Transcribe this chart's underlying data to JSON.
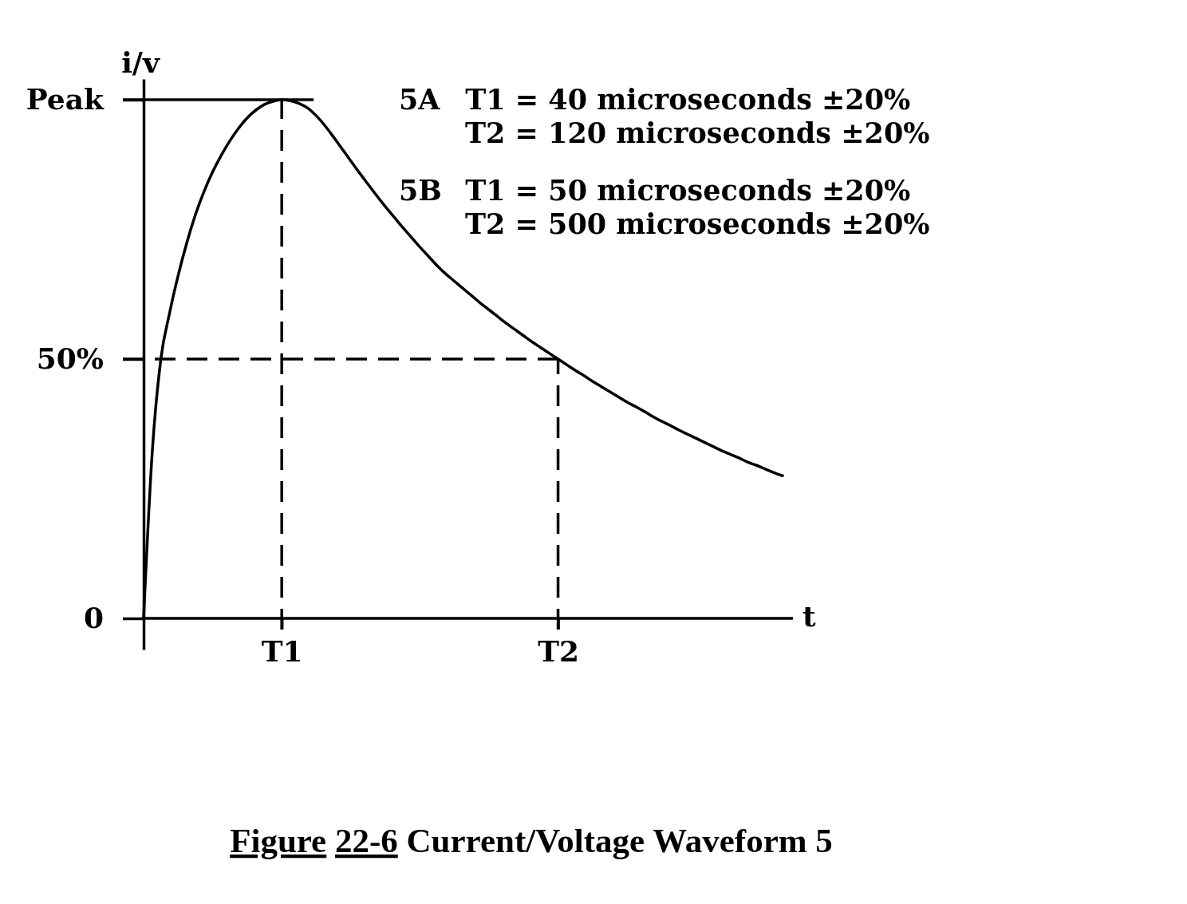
{
  "chart_data": {
    "type": "line",
    "title": "Figure 22-6 Current/Voltage Waveform 5",
    "xlabel": "t",
    "ylabel": "i/v",
    "categories": [
      null,
      null,
      null,
      null,
      null,
      null,
      null,
      null,
      null,
      null,
      null,
      null,
      null,
      null,
      null,
      null,
      "T1",
      null,
      null,
      null,
      null,
      null,
      null,
      null,
      null,
      null,
      null,
      null,
      null,
      null,
      null,
      null,
      null,
      null,
      null,
      null,
      null,
      null,
      null,
      null,
      null,
      null,
      null,
      null,
      null,
      null,
      null,
      null,
      "T2",
      null,
      null,
      null,
      null,
      null,
      null,
      null,
      null,
      null,
      null,
      null,
      null,
      null,
      null,
      null,
      null,
      null,
      null,
      null,
      null,
      null,
      null,
      null,
      null,
      null,
      null
    ],
    "series": [
      {
        "color": "#000000",
        "values": [
          0,
          32,
          50,
          58.8,
          66.1,
          72.4,
          77.8,
          82.3,
          86.1,
          89.3,
          92.1,
          94.5,
          96.5,
          98,
          99.1,
          99.7,
          100,
          99.8,
          99.3,
          98.4,
          96.9,
          95,
          92.8,
          90.5,
          88.2,
          85.9,
          83.7,
          81.5,
          79.4,
          77.4,
          75.4,
          73.5,
          71.6,
          69.8,
          68,
          66.4,
          65,
          63.6,
          62.2,
          60.8,
          59.5,
          58.2,
          56.9,
          55.7,
          54.5,
          53.3,
          52.2,
          51.1,
          50,
          48.9,
          47.8,
          46.8,
          45.7,
          44.7,
          43.7,
          42.7,
          41.7,
          40.8,
          39.9,
          38.9,
          38,
          37.2,
          36.3,
          35.5,
          34.7,
          33.9,
          33.1,
          32.3,
          31.6,
          30.9,
          30.1,
          29.5,
          28.8,
          28.1,
          27.5
        ]
      }
    ],
    "ylim": [
      -6,
      104
    ],
    "yticks": [
      0,
      {
        "value": 50,
        "label": "50%"
      },
      {
        "value": 100,
        "label": "Peak"
      }
    ],
    "ref_lines": [
      {
        "axis": "y",
        "value": 100,
        "line_style": "solid"
      },
      {
        "axis": "y",
        "value": 50,
        "line_style": "dashed"
      },
      {
        "axis": "x",
        "value": "T1",
        "line_style": "dashed"
      },
      {
        "axis": "x",
        "value": "T2",
        "line_style": "dashed"
      }
    ],
    "annotations": [
      "5A T1 = 40 microseconds ±20%",
      "T2 = 120 microseconds ±20%",
      "5B T1 = 50 microseconds ±20%",
      "T2 = 500 microseconds ±20%"
    ]
  }
}
